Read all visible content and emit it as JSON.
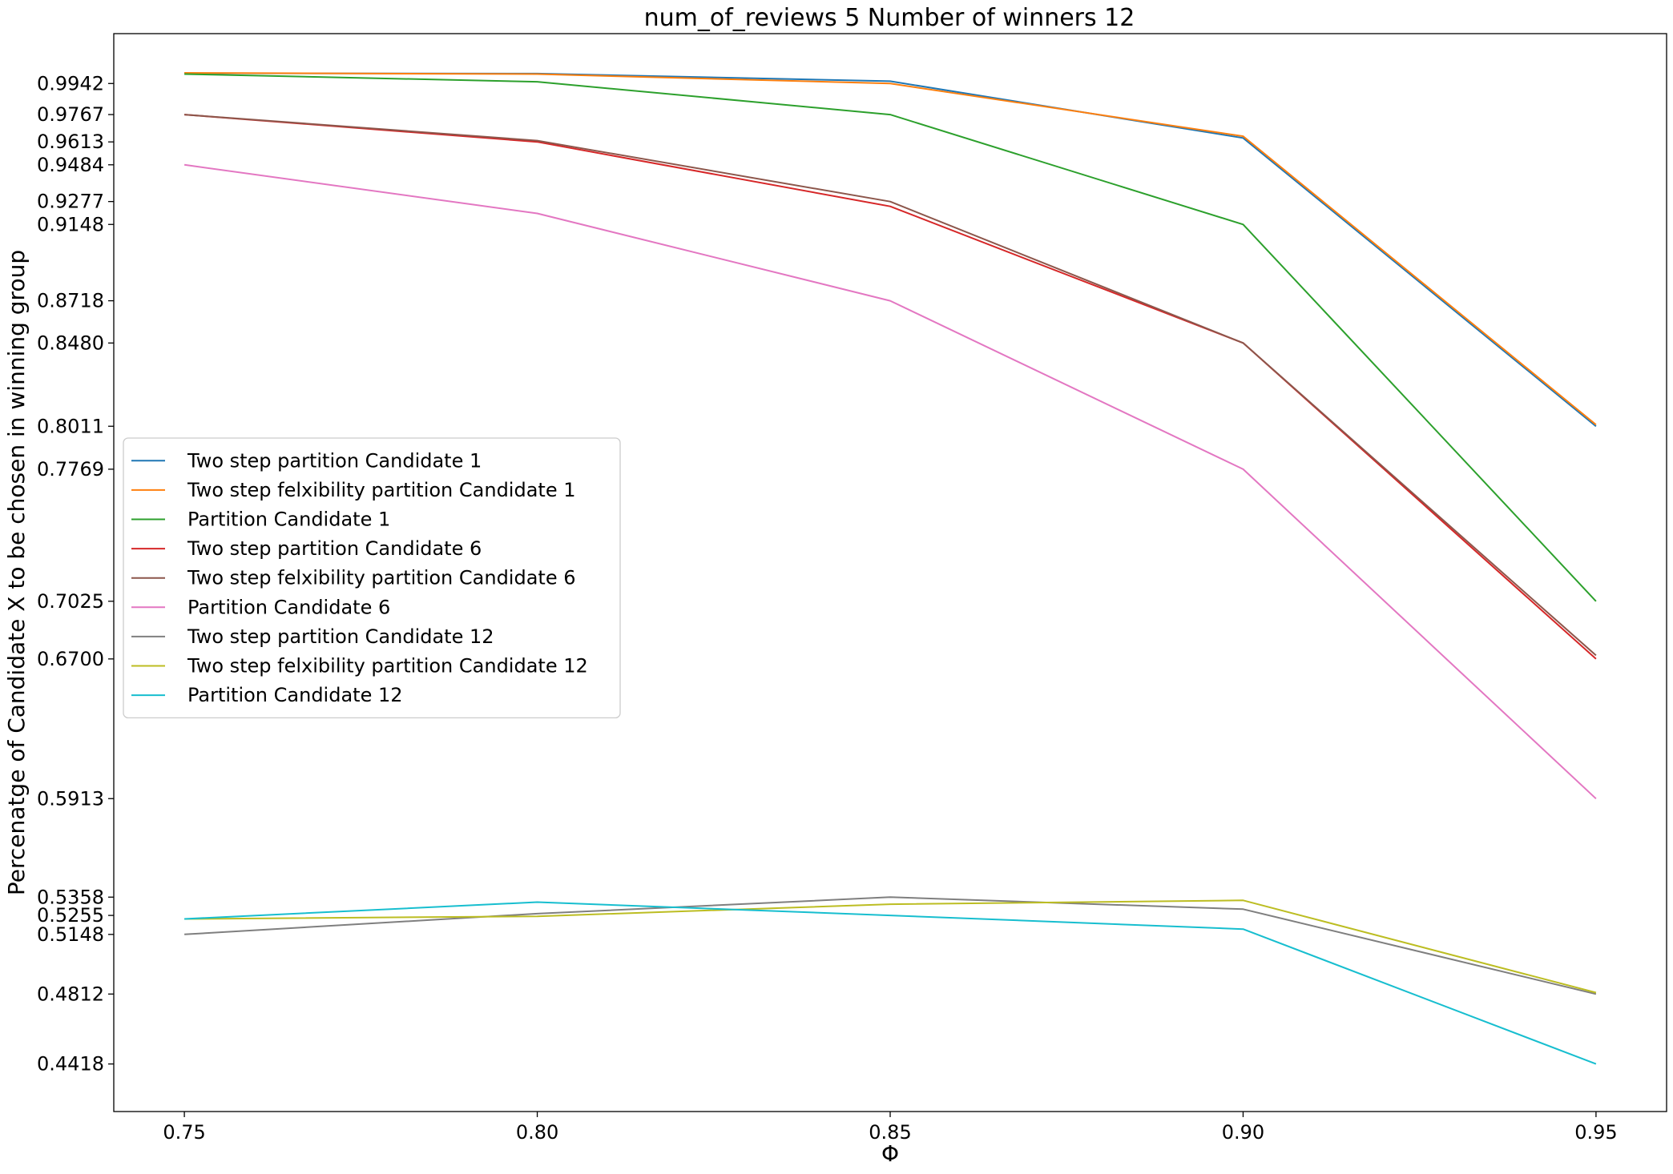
{
  "chart_data": {
    "type": "line",
    "title": "num_of_reviews 5 Number of winners 12",
    "xlabel": "Φ",
    "ylabel": "Percenatge of Candidate X to be chosen in winning group",
    "x": [
      0.75,
      0.8,
      0.85,
      0.9,
      0.95
    ],
    "x_tick_labels": [
      "0.75",
      "0.80",
      "0.85",
      "0.90",
      "0.95"
    ],
    "xlim": [
      0.74,
      0.96
    ],
    "ylim": [
      0.415,
      1.0223
    ],
    "y_ticks": [
      0.4418,
      0.4812,
      0.5148,
      0.5255,
      0.5358,
      0.5913,
      0.67,
      0.7025,
      0.7769,
      0.8011,
      0.848,
      0.8718,
      0.9148,
      0.9277,
      0.9484,
      0.9613,
      0.9767,
      0.9942
    ],
    "y_tick_labels": [
      "0.4418",
      "0.4812",
      "0.5148",
      "0.5255",
      "0.5358",
      "0.5913",
      "0.6700",
      "0.7025",
      "0.7769",
      "0.8011",
      "0.8480",
      "0.8718",
      "0.9148",
      "0.9277",
      "0.9484",
      "0.9613",
      "0.9767",
      "0.9942"
    ],
    "grid": false,
    "legend_position": "center-left",
    "series": [
      {
        "name": "Two step partition Candidate 1",
        "color": "#1f77b4",
        "values": [
          1.0,
          0.9998,
          0.9955,
          0.9635,
          0.8011
        ]
      },
      {
        "name": "Two step felxibility partition Candidate 1",
        "color": "#ff7f0e",
        "values": [
          1.0002,
          0.9995,
          0.9942,
          0.9645,
          0.802
        ]
      },
      {
        "name": "Partition Candidate 1",
        "color": "#2ca02c",
        "values": [
          0.9995,
          0.9952,
          0.9767,
          0.9148,
          0.7025
        ]
      },
      {
        "name": "Two step partition Candidate 6",
        "color": "#d62728",
        "values": [
          0.9767,
          0.9613,
          0.925,
          0.848,
          0.67
        ]
      },
      {
        "name": "Two step felxibility partition  Candidate 6",
        "color": "#8c564b",
        "values": [
          0.9767,
          0.962,
          0.9277,
          0.848,
          0.672
        ]
      },
      {
        "name": "Partition  Candidate 6",
        "color": "#e377c2",
        "values": [
          0.9484,
          0.921,
          0.8718,
          0.7769,
          0.5913
        ]
      },
      {
        "name": "Two step partition  Candidate 12",
        "color": "#7f7f7f",
        "values": [
          0.5148,
          0.5265,
          0.5358,
          0.529,
          0.4812
        ]
      },
      {
        "name": "Two step felxibility partition  Candidate 12",
        "color": "#bcbd22",
        "values": [
          0.5235,
          0.525,
          0.5318,
          0.534,
          0.482
        ]
      },
      {
        "name": "Partition  Candidate 12",
        "color": "#17becf",
        "values": [
          0.5235,
          0.533,
          0.5255,
          0.5178,
          0.4418
        ]
      }
    ]
  }
}
